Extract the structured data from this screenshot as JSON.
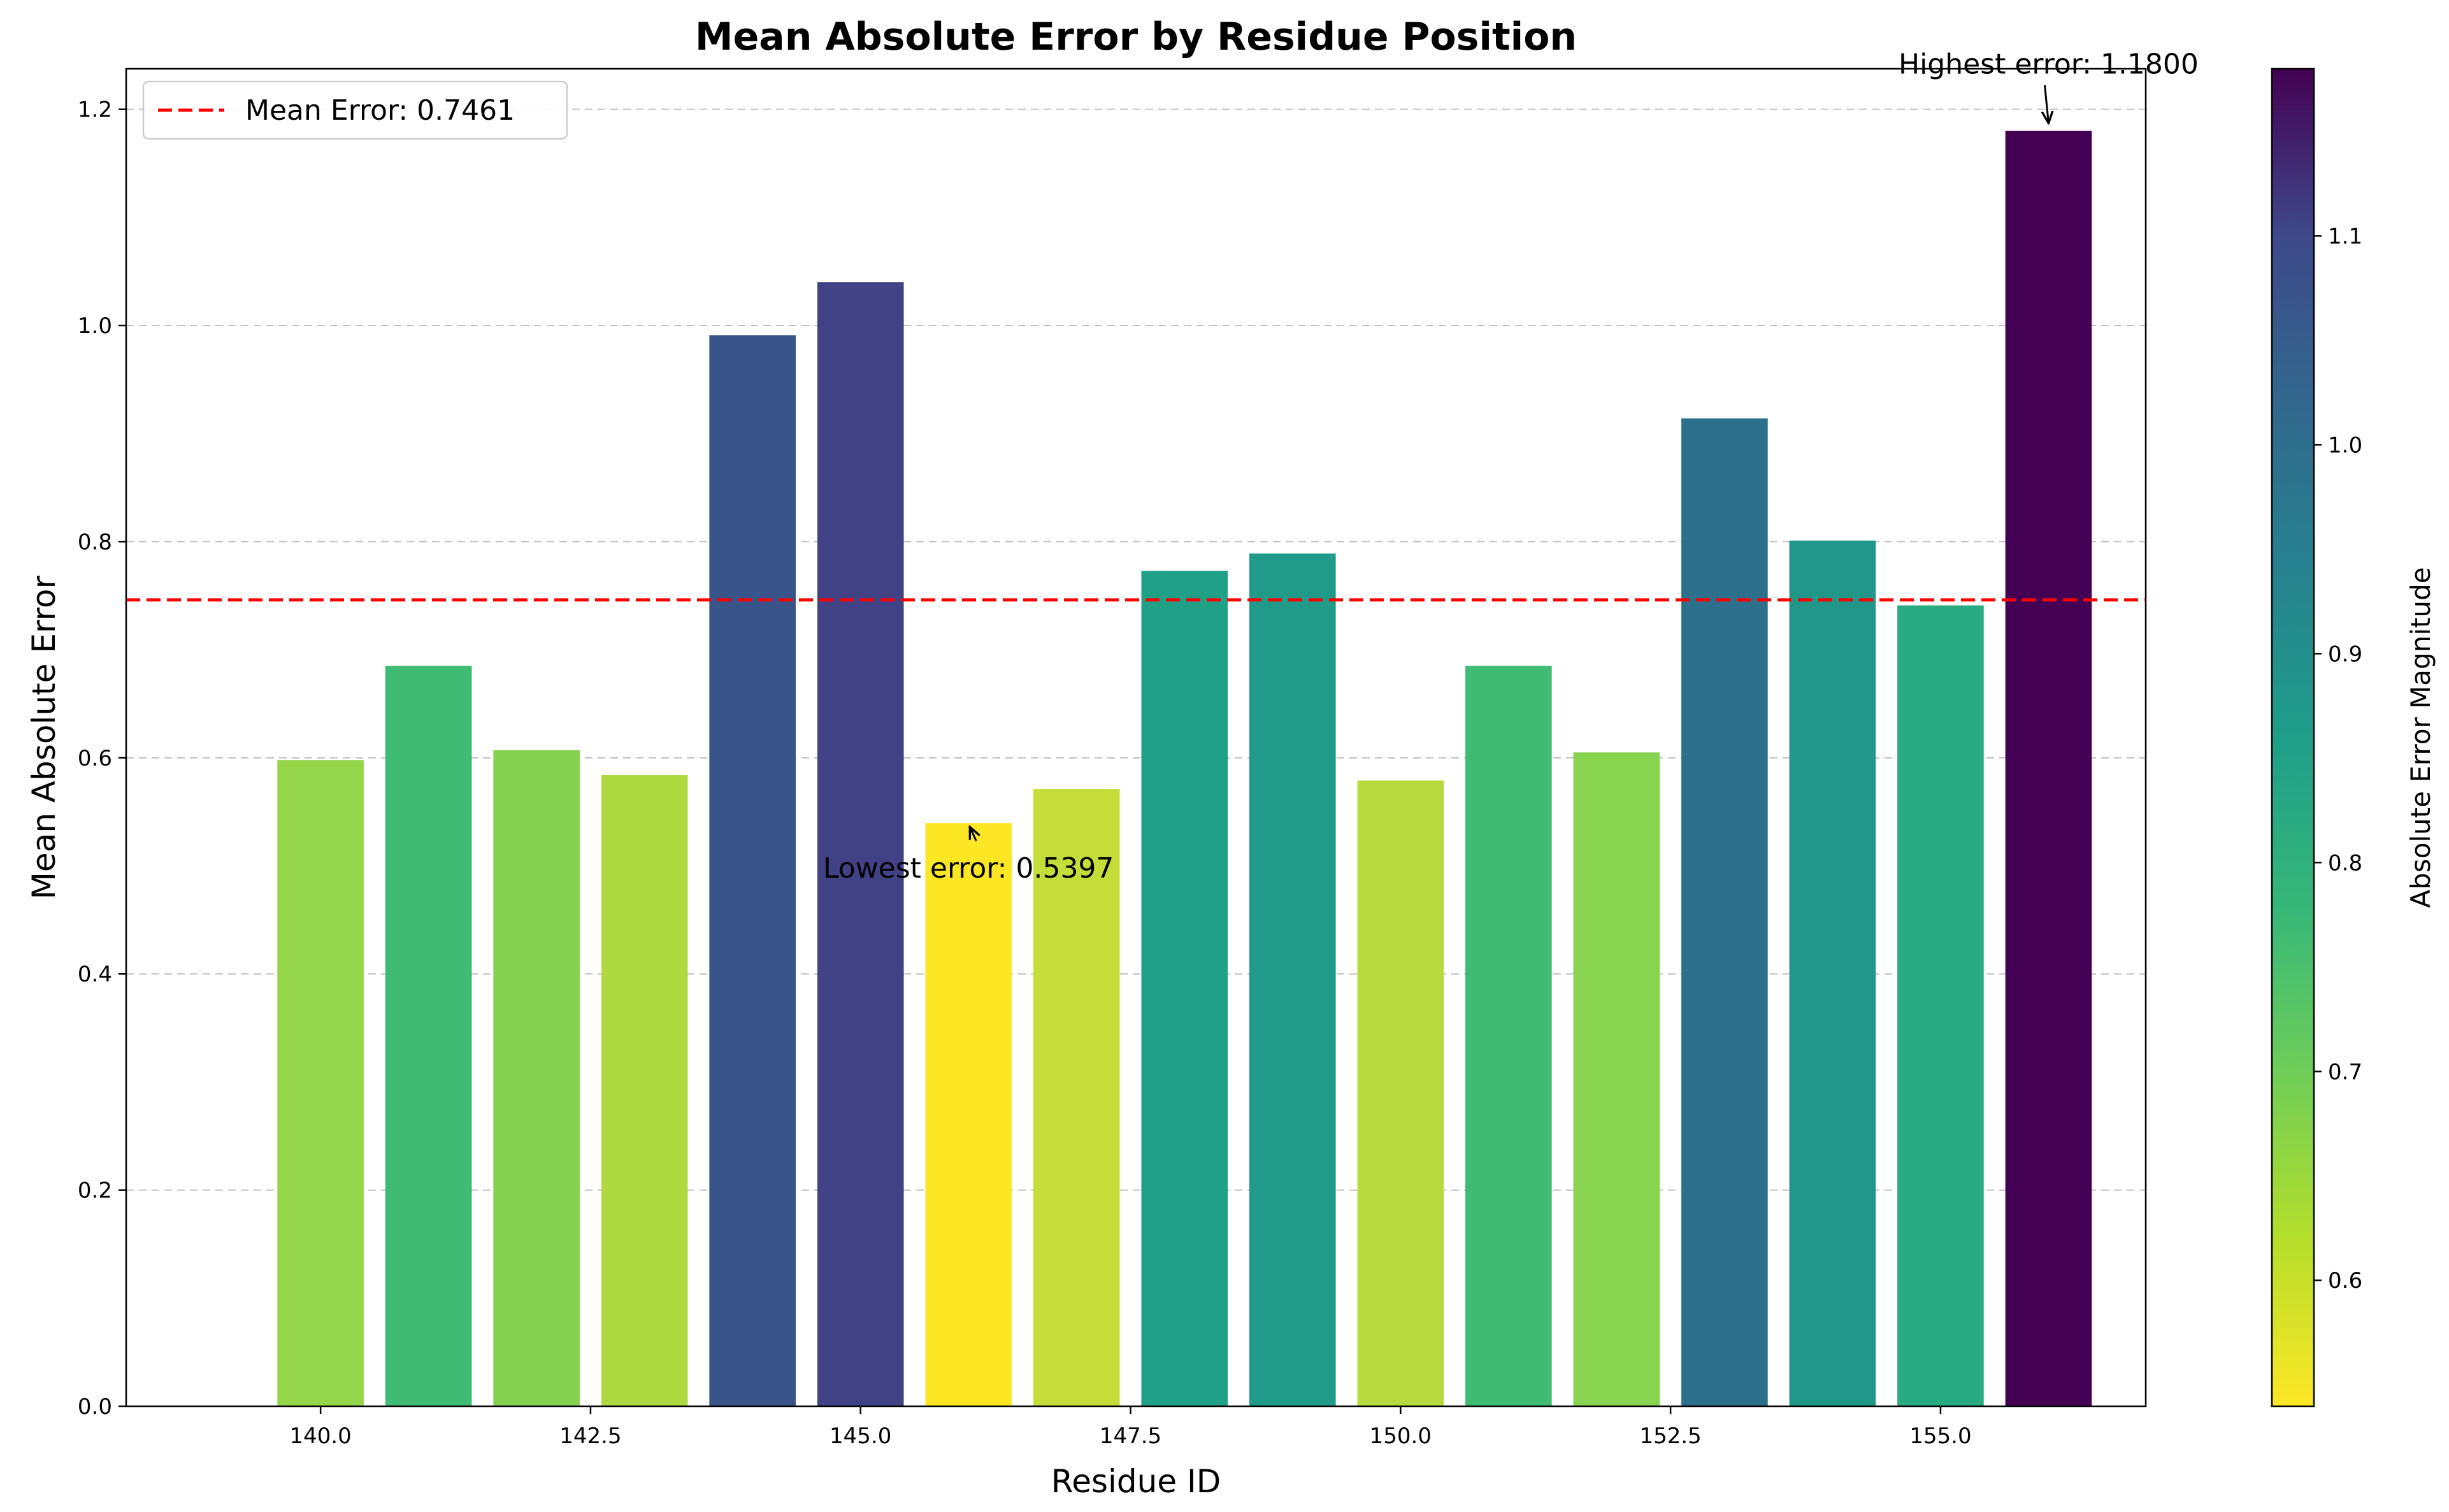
{
  "chart_data": {
    "type": "bar",
    "title": "Mean Absolute Error by Residue Position",
    "xlabel": "Residue ID",
    "ylabel": "Mean Absolute Error",
    "x": [
      140,
      141,
      142,
      143,
      144,
      145,
      146,
      147,
      148,
      149,
      150,
      151,
      152,
      153,
      154,
      155,
      156
    ],
    "values": [
      0.598,
      0.685,
      0.607,
      0.584,
      0.991,
      1.04,
      0.5397,
      0.571,
      0.773,
      0.789,
      0.579,
      0.685,
      0.605,
      0.914,
      0.801,
      0.741,
      1.18
    ],
    "xlim": [
      138.2,
      156.9
    ],
    "ylim": [
      0,
      1.2375
    ],
    "xticks": [
      "140.0",
      "142.5",
      "145.0",
      "147.5",
      "150.0",
      "152.5",
      "155.0"
    ],
    "xtick_values": [
      140,
      142.5,
      145,
      147.5,
      150,
      152.5,
      155
    ],
    "yticks": [
      "0.0",
      "0.2",
      "0.4",
      "0.6",
      "0.8",
      "1.0",
      "1.2"
    ],
    "ytick_values": [
      0,
      0.2,
      0.4,
      0.6,
      0.8,
      1.0,
      1.2
    ],
    "grid": "y-dashed",
    "colormap": "viridis_r",
    "mean_line": {
      "value": 0.7461,
      "label": "Mean Error: 0.7461",
      "color": "#ff0000"
    },
    "legend_position": "upper-left",
    "annotations": {
      "highest": "Highest error: 1.1800",
      "lowest": "Lowest error: 0.5397"
    },
    "colorbar": {
      "label": "Absolute Error Magnitude",
      "range": [
        0.5397,
        1.18
      ],
      "ticks": [
        "0.6",
        "0.7",
        "0.8",
        "0.9",
        "1.0",
        "1.1"
      ],
      "tick_values": [
        0.6,
        0.7,
        0.8,
        0.9,
        1.0,
        1.1
      ]
    }
  }
}
